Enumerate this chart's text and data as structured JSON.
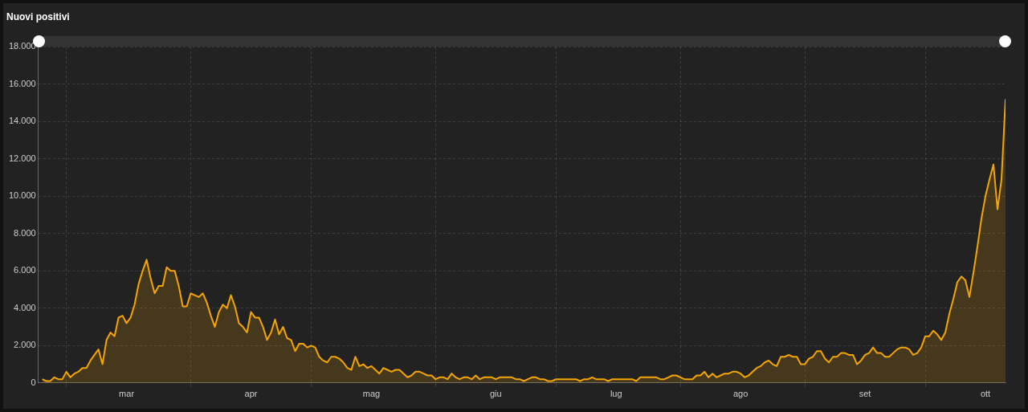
{
  "chart_data": {
    "type": "area",
    "title": "Nuovi positivi",
    "x": [
      "--02-24",
      "--02-25",
      "--02-26",
      "--02-27",
      "--02-28",
      "--02-29",
      "--03-01",
      "--03-02",
      "--03-03",
      "--03-04",
      "--03-05",
      "--03-06",
      "--03-07",
      "--03-08",
      "--03-09",
      "--03-10",
      "--03-11",
      "--03-12",
      "--03-13",
      "--03-14",
      "--03-15",
      "--03-16",
      "--03-17",
      "--03-18",
      "--03-19",
      "--03-20",
      "--03-21",
      "--03-22",
      "--03-23",
      "--03-24",
      "--03-25",
      "--03-26",
      "--03-27",
      "--03-28",
      "--03-29",
      "--03-30",
      "--03-31",
      "--04-01",
      "--04-02",
      "--04-03",
      "--04-04",
      "--04-05",
      "--04-06",
      "--04-07",
      "--04-08",
      "--04-09",
      "--04-10",
      "--04-11",
      "--04-12",
      "--04-13",
      "--04-14",
      "--04-15",
      "--04-16",
      "--04-17",
      "--04-18",
      "--04-19",
      "--04-20",
      "--04-21",
      "--04-22",
      "--04-23",
      "--04-24",
      "--04-25",
      "--04-26",
      "--04-27",
      "--04-28",
      "--04-29",
      "--04-30",
      "--05-01",
      "--05-02",
      "--05-03",
      "--05-04",
      "--05-05",
      "--05-06",
      "--05-07",
      "--05-08",
      "--05-09",
      "--05-10",
      "--05-11",
      "--05-12",
      "--05-13",
      "--05-14",
      "--05-15",
      "--05-16",
      "--05-17",
      "--05-18",
      "--05-19",
      "--05-20",
      "--05-21",
      "--05-22",
      "--05-23",
      "--05-24",
      "--05-25",
      "--05-26",
      "--05-27",
      "--05-28",
      "--05-29",
      "--05-30",
      "--05-31",
      "--06-01",
      "--06-02",
      "--06-03",
      "--06-04",
      "--06-05",
      "--06-06",
      "--06-07",
      "--06-08",
      "--06-09",
      "--06-10",
      "--06-11",
      "--06-12",
      "--06-13",
      "--06-14",
      "--06-15",
      "--06-16",
      "--06-17",
      "--06-18",
      "--06-19",
      "--06-20",
      "--06-21",
      "--06-22",
      "--06-23",
      "--06-24",
      "--06-25",
      "--06-26",
      "--06-27",
      "--06-28",
      "--06-29",
      "--06-30",
      "--07-01",
      "--07-02",
      "--07-03",
      "--07-04",
      "--07-05",
      "--07-06",
      "--07-07",
      "--07-08",
      "--07-09",
      "--07-10",
      "--07-11",
      "--07-12",
      "--07-13",
      "--07-14",
      "--07-15",
      "--07-16",
      "--07-17",
      "--07-18",
      "--07-19",
      "--07-20",
      "--07-21",
      "--07-22",
      "--07-23",
      "--07-24",
      "--07-25",
      "--07-26",
      "--07-27",
      "--07-28",
      "--07-29",
      "--07-30",
      "--07-31",
      "--08-01",
      "--08-02",
      "--08-03",
      "--08-04",
      "--08-05",
      "--08-06",
      "--08-07",
      "--08-08",
      "--08-09",
      "--08-10",
      "--08-11",
      "--08-12",
      "--08-13",
      "--08-14",
      "--08-15",
      "--08-16",
      "--08-17",
      "--08-18",
      "--08-19",
      "--08-20",
      "--08-21",
      "--08-22",
      "--08-23",
      "--08-24",
      "--08-25",
      "--08-26",
      "--08-27",
      "--08-28",
      "--08-29",
      "--08-30",
      "--08-31",
      "--09-01",
      "--09-02",
      "--09-03",
      "--09-04",
      "--09-05",
      "--09-06",
      "--09-07",
      "--09-08",
      "--09-09",
      "--09-10",
      "--09-11",
      "--09-12",
      "--09-13",
      "--09-14",
      "--09-15",
      "--09-16",
      "--09-17",
      "--09-18",
      "--09-19",
      "--09-20",
      "--09-21",
      "--09-22",
      "--09-23",
      "--09-24",
      "--09-25",
      "--09-26",
      "--09-27",
      "--09-28",
      "--09-29",
      "--09-30",
      "--10-01",
      "--10-02",
      "--10-03",
      "--10-04",
      "--10-05",
      "--10-06",
      "--10-07",
      "--10-08",
      "--10-09",
      "--10-10",
      "--10-11",
      "--10-12",
      "--10-13",
      "--10-14",
      "--10-15",
      "--10-16",
      "--10-17",
      "--10-18",
      "--10-19",
      "--10-20",
      "--10-21"
    ],
    "series": [
      {
        "color": "#f5a500",
        "values": [
          200,
          100,
          100,
          300,
          200,
          200,
          600,
          300,
          500,
          600,
          800,
          800,
          1200,
          1500,
          1800,
          1000,
          2300,
          2700,
          2500,
          3500,
          3600,
          3200,
          3500,
          4200,
          5300,
          6000,
          6600,
          5600,
          4800,
          5200,
          5200,
          6200,
          6000,
          6000,
          5200,
          4100,
          4100,
          4800,
          4700,
          4600,
          4800,
          4300,
          3600,
          3000,
          3800,
          4200,
          4000,
          4700,
          4100,
          3200,
          3000,
          2700,
          3800,
          3500,
          3500,
          3000,
          2300,
          2700,
          3400,
          2600,
          3000,
          2400,
          2300,
          1700,
          2100,
          2100,
          1900,
          2000,
          1900,
          1400,
          1200,
          1100,
          1400,
          1400,
          1300,
          1100,
          800,
          700,
          1400,
          900,
          1000,
          800,
          900,
          700,
          500,
          800,
          700,
          600,
          700,
          700,
          500,
          300,
          400,
          600,
          600,
          500,
          400,
          400,
          200,
          300,
          300,
          200,
          500,
          300,
          200,
          300,
          300,
          200,
          400,
          200,
          300,
          300,
          300,
          200,
          300,
          300,
          300,
          300,
          200,
          200,
          100,
          200,
          300,
          300,
          200,
          200,
          100,
          100,
          200,
          200,
          200,
          200,
          200,
          200,
          100,
          200,
          200,
          300,
          200,
          200,
          200,
          100,
          200,
          200,
          200,
          200,
          200,
          200,
          100,
          300,
          300,
          300,
          300,
          300,
          200,
          200,
          300,
          400,
          400,
          300,
          200,
          200,
          200,
          400,
          400,
          600,
          300,
          500,
          300,
          400,
          500,
          500,
          600,
          600,
          500,
          300,
          400,
          600,
          800,
          900,
          1100,
          1200,
          1000,
          900,
          1400,
          1400,
          1500,
          1400,
          1400,
          1000,
          1000,
          1300,
          1400,
          1700,
          1700,
          1300,
          1100,
          1400,
          1400,
          1600,
          1600,
          1500,
          1500,
          1000,
          1200,
          1500,
          1600,
          1900,
          1600,
          1600,
          1400,
          1400,
          1600,
          1800,
          1900,
          1900,
          1800,
          1500,
          1600,
          1900,
          2500,
          2500,
          2800,
          2600,
          2300,
          2700,
          3700,
          4500,
          5400,
          5700,
          5500,
          4600,
          5900,
          7300,
          8800,
          10000,
          10900,
          11700,
          9300,
          10900,
          15200
        ]
      }
    ],
    "xlim": [
      "--02-23",
      "--10-21"
    ],
    "xticks": [
      {
        "value": "--03-01",
        "label": null
      },
      {
        "value": "--03-16",
        "label": "mar"
      },
      {
        "value": "--04-01",
        "label": null
      },
      {
        "value": "--04-16",
        "label": "apr"
      },
      {
        "value": "--05-01",
        "label": null
      },
      {
        "value": "--05-16",
        "label": "mag"
      },
      {
        "value": "--06-01",
        "label": null
      },
      {
        "value": "--06-16",
        "label": "giu"
      },
      {
        "value": "--07-01",
        "label": null
      },
      {
        "value": "--07-16",
        "label": "lug"
      },
      {
        "value": "--08-01",
        "label": null
      },
      {
        "value": "--08-16",
        "label": "ago"
      },
      {
        "value": "--09-01",
        "label": null
      },
      {
        "value": "--09-16",
        "label": "set"
      },
      {
        "value": "--10-01",
        "label": null
      },
      {
        "value": "--10-16",
        "label": "ott"
      }
    ],
    "ylim": [
      0,
      18000
    ],
    "yticks": [
      {
        "value": 0,
        "label": "0"
      },
      {
        "value": 2000,
        "label": "2.000"
      },
      {
        "value": 4000,
        "label": "4.000"
      },
      {
        "value": 6000,
        "label": "6.000"
      },
      {
        "value": 8000,
        "label": "8.000"
      },
      {
        "value": 10000,
        "label": "10.000"
      },
      {
        "value": 12000,
        "label": "12.000"
      },
      {
        "value": 14000,
        "label": "14.000"
      },
      {
        "value": 16000,
        "label": "16.000"
      },
      {
        "value": 18000,
        "label": "18.000"
      }
    ],
    "grid": true
  }
}
